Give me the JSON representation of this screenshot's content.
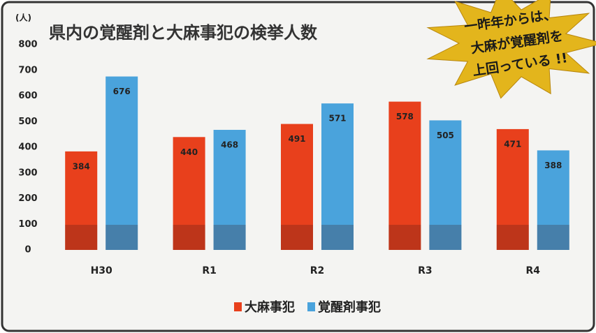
{
  "chart_data": {
    "type": "bar",
    "title": "県内の覚醒剤と大麻事犯の検挙人数",
    "y_unit_label": "(人)",
    "categories": [
      "H30",
      "R1",
      "R2",
      "R3",
      "R4"
    ],
    "series": [
      {
        "name": "大麻事犯",
        "color": "#e8401c",
        "values": [
          384,
          440,
          491,
          578,
          471
        ]
      },
      {
        "name": "覚醒剤事犯",
        "color": "#4aa3dc",
        "values": [
          676,
          468,
          571,
          505,
          388
        ]
      }
    ],
    "ylim": [
      0,
      800
    ],
    "yticks": [
      0,
      100,
      200,
      300,
      400,
      500,
      600,
      700,
      800
    ],
    "grid": false,
    "legend": "bottom",
    "annotation": [
      "一昨年からは、",
      "大麻が覚醒剤を",
      "上回っている !!"
    ]
  }
}
